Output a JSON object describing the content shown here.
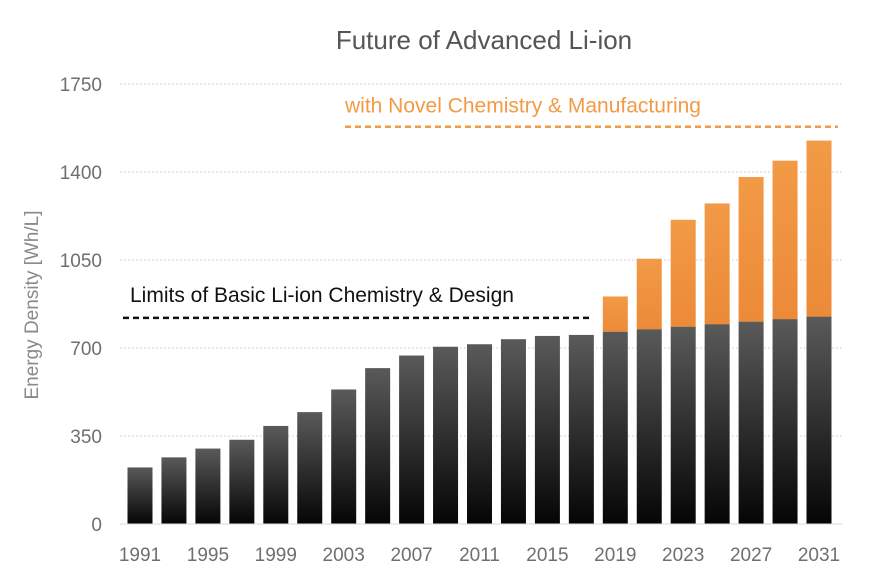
{
  "chart_data": {
    "type": "bar",
    "stacked": true,
    "title": "Future of Advanced Li-ion",
    "xlabel": "",
    "ylabel": "Energy Density [Wh/L]",
    "ylim": [
      0,
      1750
    ],
    "yticks": [
      0,
      350,
      700,
      1050,
      1400,
      1750
    ],
    "xtick_labels": [
      "1991",
      "1995",
      "1999",
      "2003",
      "2007",
      "2011",
      "2015",
      "2019",
      "2023",
      "2027",
      "2031"
    ],
    "categories": [
      "1991",
      "1993",
      "1995",
      "1997",
      "1999",
      "2001",
      "2003",
      "2005",
      "2007",
      "2009",
      "2011",
      "2013",
      "2015",
      "2017",
      "2019",
      "2021",
      "2023",
      "2025",
      "2027",
      "2029",
      "2031"
    ],
    "series": [
      {
        "color": "#2a2a2a",
        "values": [
          225,
          265,
          300,
          335,
          390,
          445,
          535,
          620,
          670,
          705,
          715,
          735,
          748,
          752,
          765,
          775,
          785,
          795,
          805,
          815,
          825
        ]
      },
      {
        "color": "#f0913f",
        "values": [
          0,
          0,
          0,
          0,
          0,
          0,
          0,
          0,
          0,
          0,
          0,
          0,
          0,
          0,
          140,
          280,
          425,
          480,
          575,
          630,
          700
        ]
      }
    ],
    "gridlines": true,
    "annotations": [
      {
        "text": "Limits of Basic Li-ion Chemistry & Design",
        "value": 820,
        "color": "#111111",
        "style": "dashed"
      },
      {
        "text": "with Novel Chemistry & Manufacturing",
        "value": 1580,
        "color": "#f39a45",
        "style": "dashed"
      }
    ]
  }
}
